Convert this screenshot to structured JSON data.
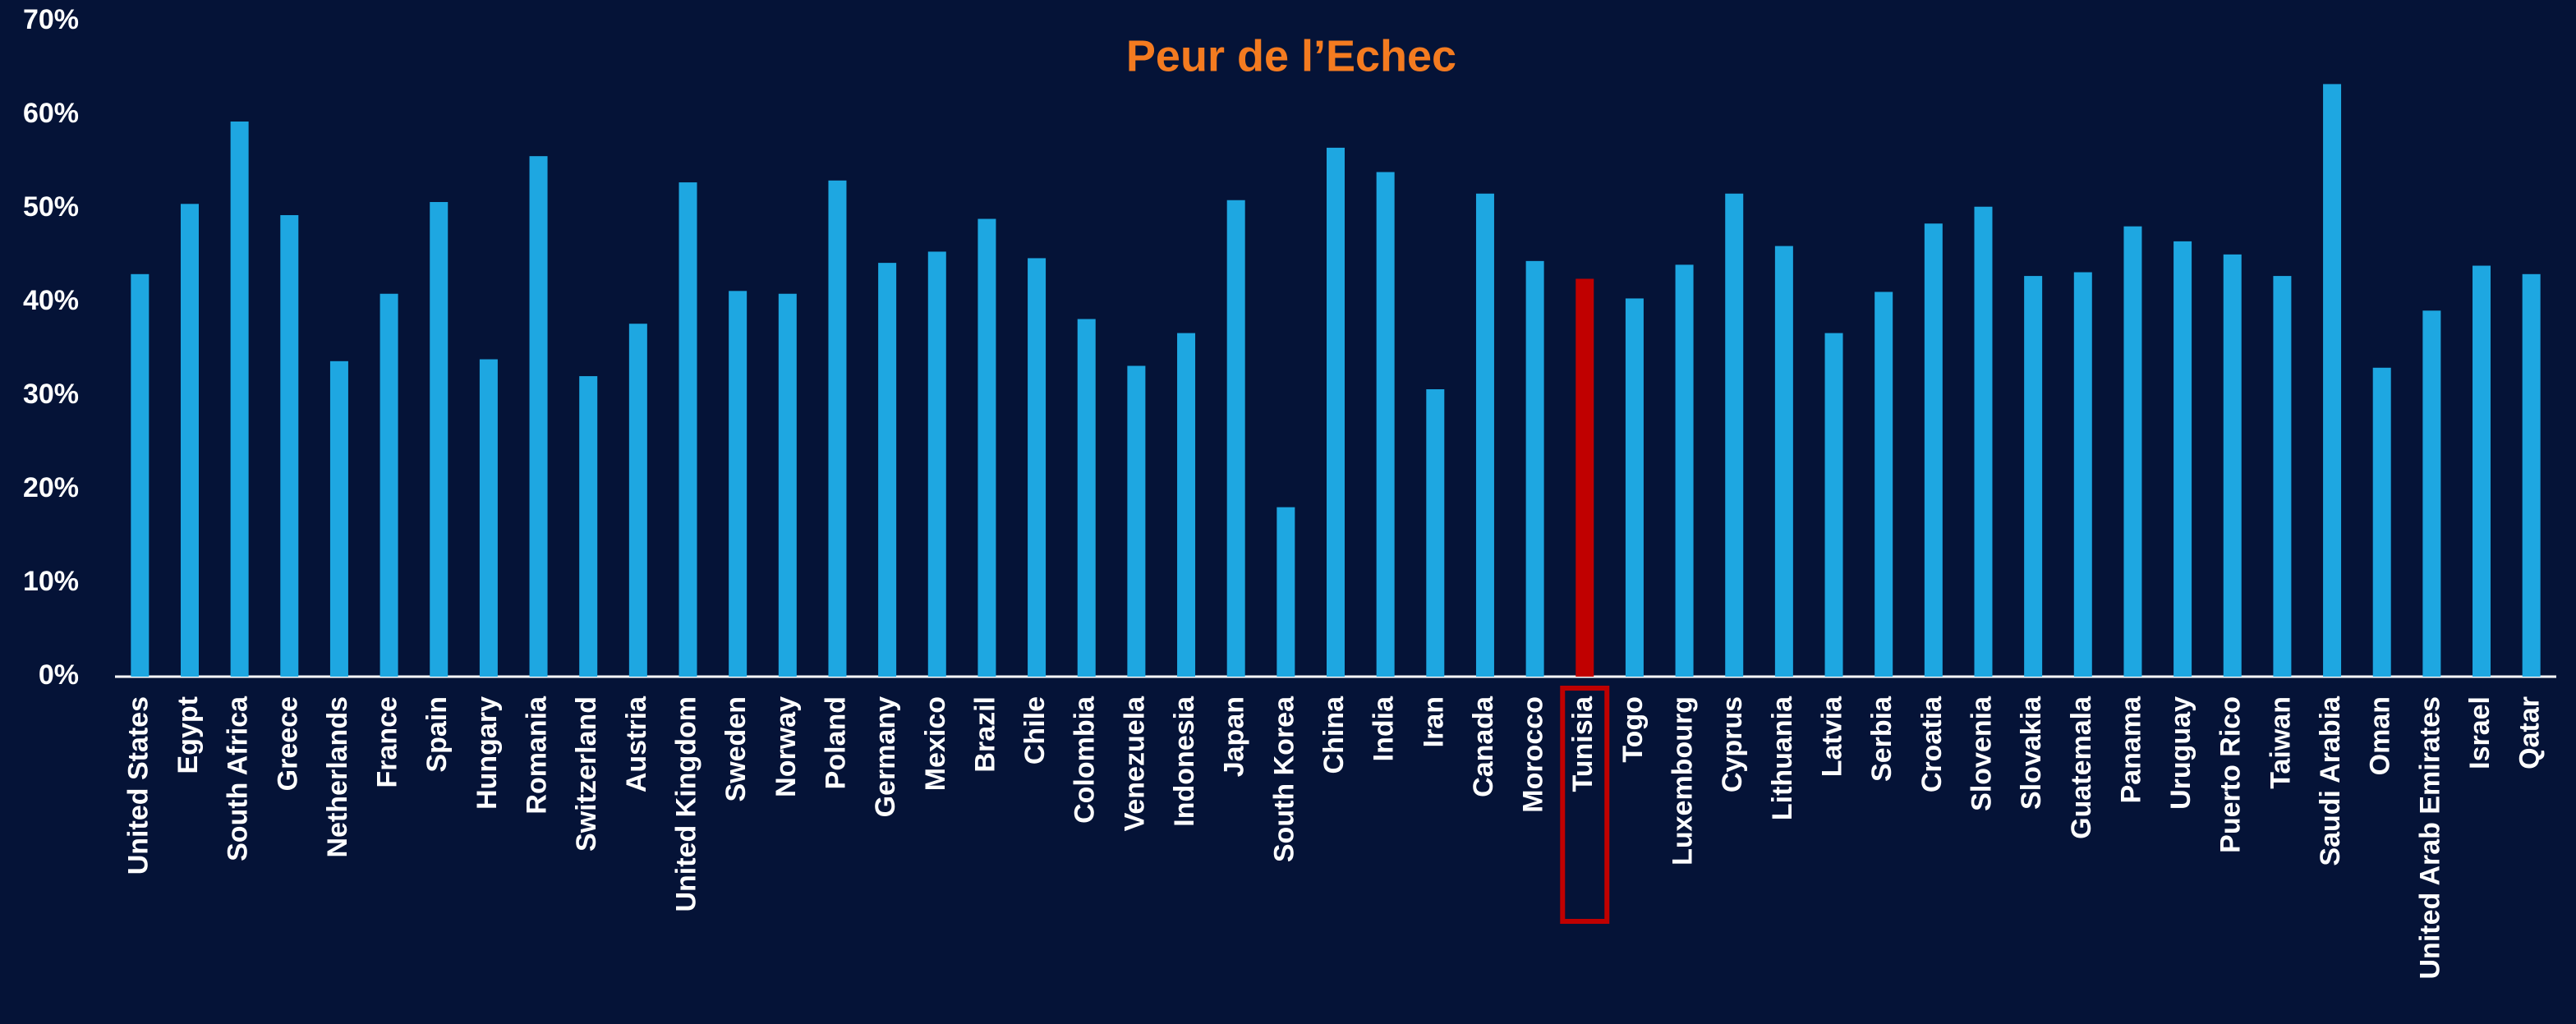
{
  "chart_data": {
    "type": "bar",
    "title": "Peur de l’Echec",
    "categories": [
      "United States",
      "Egypt",
      "South Africa",
      "Greece",
      "Netherlands",
      "France",
      "Spain",
      "Hungary",
      "Romania",
      "Switzerland",
      "Austria",
      "United Kingdom",
      "Sweden",
      "Norway",
      "Poland",
      "Germany",
      "Mexico",
      "Brazil",
      "Chile",
      "Colombia",
      "Venezuela",
      "Indonesia",
      "Japan",
      "South Korea",
      "China",
      "India",
      "Iran",
      "Canada",
      "Morocco",
      "Tunisia",
      "Togo",
      "Luxembourg",
      "Cyprus",
      "Lithuania",
      "Latvia",
      "Serbia",
      "Croatia",
      "Slovenia",
      "Slovakia",
      "Guatemala",
      "Panama",
      "Uruguay",
      "Puerto Rico",
      "Taiwan",
      "Saudi Arabia",
      "Oman",
      "United Arab Emirates",
      "Israel",
      "Qatar"
    ],
    "values": [
      43.0,
      50.5,
      59.3,
      49.3,
      33.7,
      40.9,
      50.7,
      33.9,
      55.6,
      32.1,
      37.7,
      52.8,
      41.2,
      40.9,
      53.0,
      44.2,
      45.4,
      48.9,
      44.7,
      38.2,
      33.2,
      36.7,
      50.9,
      18.1,
      56.5,
      53.9,
      30.7,
      51.6,
      44.4,
      42.5,
      40.4,
      44.0,
      51.6,
      46.0,
      36.7,
      41.1,
      48.4,
      50.2,
      42.8,
      43.2,
      48.1,
      46.5,
      45.1,
      42.8,
      63.3,
      33.0,
      39.1,
      43.9,
      43.0
    ],
    "color": "#1ea7e1",
    "colors": [
      "#1ea7e1",
      "#1ea7e1",
      "#1ea7e1",
      "#1ea7e1",
      "#1ea7e1",
      "#1ea7e1",
      "#1ea7e1",
      "#1ea7e1",
      "#1ea7e1",
      "#1ea7e1",
      "#1ea7e1",
      "#1ea7e1",
      "#1ea7e1",
      "#1ea7e1",
      "#1ea7e1",
      "#1ea7e1",
      "#1ea7e1",
      "#1ea7e1",
      "#1ea7e1",
      "#1ea7e1",
      "#1ea7e1",
      "#1ea7e1",
      "#1ea7e1",
      "#1ea7e1",
      "#1ea7e1",
      "#1ea7e1",
      "#1ea7e1",
      "#1ea7e1",
      "#1ea7e1",
      "#c00000",
      "#1ea7e1",
      "#1ea7e1",
      "#1ea7e1",
      "#1ea7e1",
      "#1ea7e1",
      "#1ea7e1",
      "#1ea7e1",
      "#1ea7e1",
      "#1ea7e1",
      "#1ea7e1",
      "#1ea7e1",
      "#1ea7e1",
      "#1ea7e1",
      "#1ea7e1",
      "#1ea7e1",
      "#1ea7e1",
      "#1ea7e1",
      "#1ea7e1",
      "#1ea7e1"
    ],
    "ylim": [
      0,
      70
    ],
    "yticks": [
      {
        "value": 0,
        "label": "0%"
      },
      {
        "value": 10,
        "label": "10%"
      },
      {
        "value": 20,
        "label": "20%"
      },
      {
        "value": 30,
        "label": "30%"
      },
      {
        "value": 40,
        "label": "40%"
      },
      {
        "value": 50,
        "label": "50%"
      },
      {
        "value": 60,
        "label": "60%"
      },
      {
        "value": 70,
        "label": "70%"
      }
    ],
    "grid": false
  }
}
